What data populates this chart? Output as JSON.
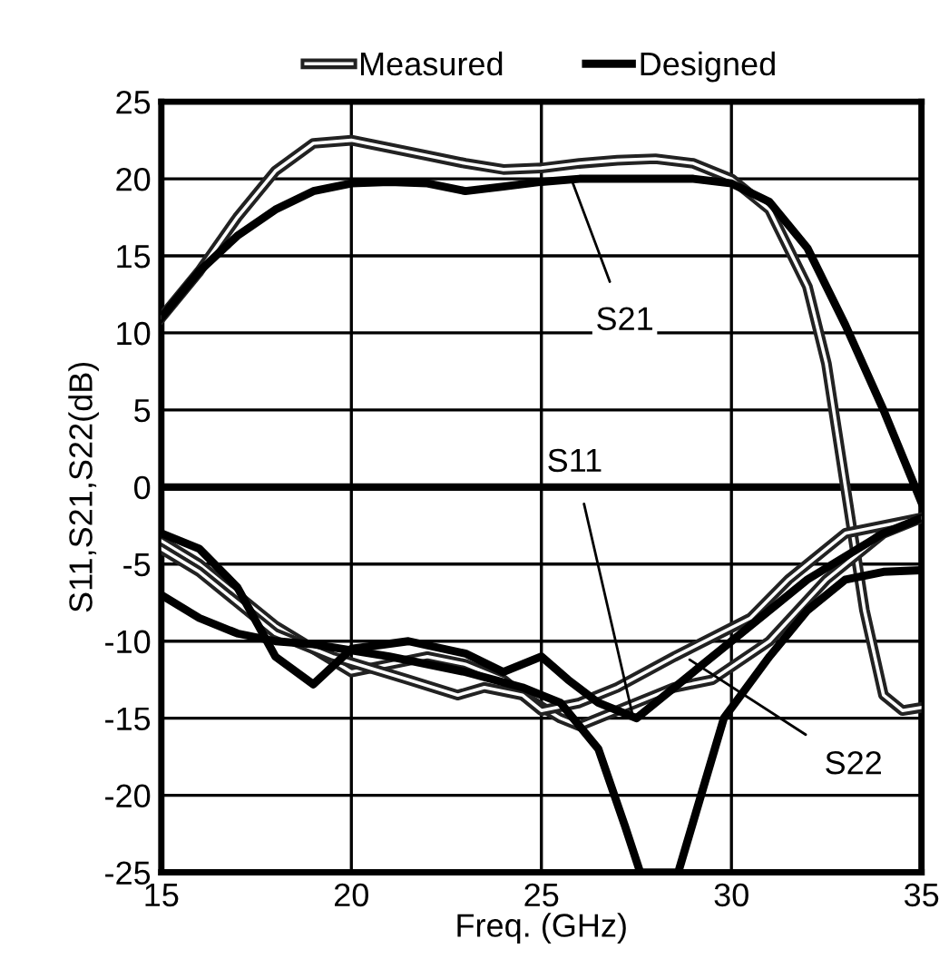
{
  "chart_data": {
    "type": "line",
    "xlabel": "Freq. (GHz)",
    "ylabel": "S11,S21,S22(dB)",
    "xlim": [
      15,
      35
    ],
    "xticks": [
      15,
      20,
      25,
      30,
      35
    ],
    "ylim": [
      -25,
      25
    ],
    "yticks": [
      -25,
      -20,
      -15,
      -10,
      -5,
      0,
      5,
      10,
      15,
      20,
      25
    ],
    "grid": true,
    "legend": "top",
    "ref_lines": [
      {
        "axis": "y",
        "value": 0,
        "color": "#000000"
      }
    ],
    "series": [
      {
        "name": "Measured",
        "color": "#ffffff",
        "x": [
          15,
          16,
          17,
          18,
          19,
          20,
          21,
          22,
          23,
          24,
          25,
          26,
          27,
          28,
          29,
          30,
          31,
          32,
          32.5,
          33,
          33.5,
          34,
          34.5,
          35
        ],
        "values": [
          11,
          14,
          17.5,
          20.5,
          22.3,
          22.5,
          22,
          21.5,
          21,
          20.6,
          20.7,
          21,
          21.2,
          21.3,
          21,
          20,
          18,
          13,
          8,
          0,
          -8,
          -13.5,
          -14.5,
          -14.3
        ]
      },
      {
        "name": "Designed",
        "color": "#000000",
        "x": [
          15,
          16,
          17,
          18,
          19,
          20,
          21,
          22,
          23,
          24,
          25,
          26,
          27,
          28,
          29,
          30,
          31,
          32,
          33,
          34,
          35
        ],
        "values": [
          11,
          14,
          16.3,
          18,
          19.2,
          19.7,
          19.8,
          19.7,
          19.2,
          19.5,
          19.8,
          20,
          20,
          20,
          20,
          19.7,
          18.5,
          15.5,
          10.5,
          5,
          -1
        ]
      },
      {
        "color": "#ffffff",
        "x": [
          15,
          16,
          17,
          18,
          19,
          20,
          21,
          22,
          23,
          24,
          24.5,
          25.5,
          26,
          27,
          28.5,
          29.5,
          31,
          32.5,
          34,
          35
        ],
        "values": [
          -3.5,
          -5,
          -7,
          -9,
          -10.5,
          -12,
          -11.5,
          -11,
          -11.5,
          -12.5,
          -13.5,
          -15,
          -15.5,
          -14.5,
          -13,
          -12.5,
          -10,
          -6,
          -3,
          -2
        ]
      },
      {
        "color": "#ffffff",
        "x": [
          15,
          16,
          17,
          18,
          19.5,
          21.5,
          22.8,
          23.5,
          24.5,
          25,
          26,
          27,
          28.5,
          30.5,
          31.5,
          33,
          35
        ],
        "values": [
          -4,
          -5.5,
          -7.5,
          -9.5,
          -11,
          -12.5,
          -13.5,
          -13,
          -13.5,
          -14.5,
          -14,
          -13,
          -11,
          -8.5,
          -6,
          -3,
          -2
        ]
      },
      {
        "color": "#000000",
        "x": [
          15,
          16,
          17,
          18,
          19,
          20,
          21.5,
          23,
          24,
          25,
          25.7,
          26.5,
          27.5,
          28.5,
          30,
          31,
          32,
          33,
          34,
          35
        ],
        "values": [
          -3,
          -4,
          -6.5,
          -11,
          -12.8,
          -10.5,
          -10,
          -10.8,
          -12,
          -11,
          -12.5,
          -14,
          -15,
          -13,
          -10,
          -8,
          -6,
          -4.5,
          -3,
          -2
        ]
      },
      {
        "color": "#000000",
        "x": [
          15,
          16,
          17,
          18,
          19,
          21,
          23,
          24.5,
          25.5,
          26.5,
          27.2,
          27.6,
          28.6,
          29.2,
          29.8,
          31,
          32,
          33,
          34,
          35
        ],
        "values": [
          -7,
          -8.5,
          -9.5,
          -10,
          -10.2,
          -11,
          -12,
          -13,
          -14,
          -17,
          -22,
          -25,
          -25,
          -20,
          -15,
          -11,
          -8,
          -6,
          -5.5,
          -5.4
        ]
      }
    ],
    "annotations": [
      {
        "text": "S21",
        "x": 25.8,
        "y": 19.9
      },
      {
        "text": "S11",
        "x": 27.4,
        "y": -14.8
      },
      {
        "text": "S22",
        "x": 28.9,
        "y": -11.2
      }
    ]
  }
}
